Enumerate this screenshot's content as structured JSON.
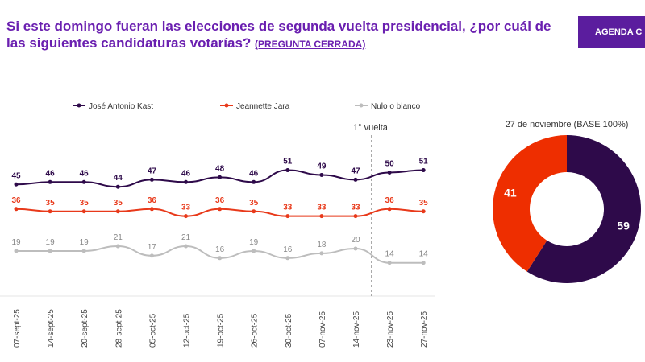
{
  "header": {
    "title": "Si este domingo fueran las elecciones de segunda vuelta presidencial, ¿por cuál de las siguientes candidaturas votarías?",
    "subtitle": "(PREGUNTA CERRADA)",
    "agenda_label": "AGENDA C"
  },
  "chart_data": [
    {
      "type": "line",
      "categories": [
        "07-sept-25",
        "14-sept-25",
        "20-sept-25",
        "28-sept-25",
        "05-oct-25",
        "12-oct-25",
        "19-oct-25",
        "26-oct-25",
        "30-oct-25",
        "07-nov-25",
        "14-nov-25",
        "23-nov-25",
        "27-nov-25"
      ],
      "series": [
        {
          "name": "José Antonio Kast",
          "color": "#2e0a4a",
          "values": [
            45,
            46,
            46,
            44,
            47,
            46,
            48,
            46,
            51,
            49,
            47,
            50,
            51
          ]
        },
        {
          "name": "Jeannette Jara",
          "color": "#e8391a",
          "values": [
            36,
            35,
            35,
            35,
            36,
            33,
            36,
            35,
            33,
            33,
            33,
            36,
            35
          ]
        },
        {
          "name": "Nulo o blanco",
          "color": "#bdbdbd",
          "values": [
            19,
            19,
            19,
            21,
            17,
            21,
            16,
            19,
            16,
            18,
            20,
            14,
            14
          ]
        }
      ],
      "annotation": "1° vuelta",
      "legend": "top"
    },
    {
      "type": "pie",
      "title": "27 de noviembre (BASE 100%)",
      "slices": [
        {
          "label": "José Antonio Kast",
          "value": 59,
          "color": "#2e0a4a"
        },
        {
          "label": "Jeannette Jara",
          "value": 41,
          "color": "#ee2e00"
        }
      ]
    }
  ]
}
